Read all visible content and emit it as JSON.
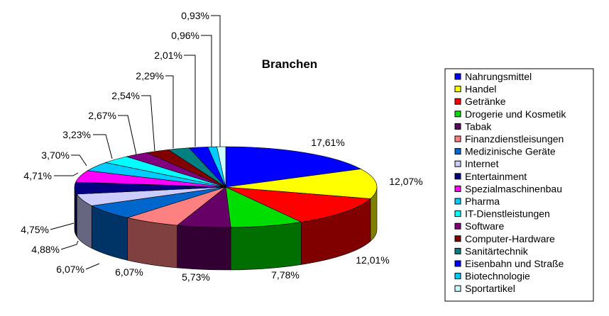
{
  "chart_data": {
    "type": "pie",
    "style": "3d-exploded-tilted",
    "title": "Branchen",
    "legend_position": "right",
    "slices": [
      {
        "name": "Nahrungsmittel",
        "value": 17.61,
        "label": "17,61%",
        "color": "#0000FF"
      },
      {
        "name": "Handel",
        "value": 12.07,
        "label": "12,07%",
        "color": "#FFFF00"
      },
      {
        "name": "Getränke",
        "value": 12.01,
        "label": "12,01%",
        "color": "#FF0000"
      },
      {
        "name": "Drogerie und Kosmetik",
        "value": 7.78,
        "label": "7,78%",
        "color": "#00DD00"
      },
      {
        "name": "Tabak",
        "value": 5.73,
        "label": "5,73%",
        "color": "#660066"
      },
      {
        "name": "Finanzdienstleisungen",
        "value": 6.07,
        "label": "6,07%",
        "color": "#FF8080"
      },
      {
        "name": "Medizinische Geräte",
        "value": 6.07,
        "label": "6,07%",
        "color": "#0066CC"
      },
      {
        "name": "Internet",
        "value": 4.88,
        "label": "4,88%",
        "color": "#CCCCFF"
      },
      {
        "name": "Entertainment",
        "value": 4.75,
        "label": "4,75%",
        "color": "#000080"
      },
      {
        "name": "Spezialmaschinenbau",
        "value": 4.71,
        "label": "4,71%",
        "color": "#FF00FF"
      },
      {
        "name": "Pharma",
        "value": 3.7,
        "label": "3,70%",
        "color": "#00CCFF"
      },
      {
        "name": "IT-Dienstleistungen",
        "value": 3.23,
        "label": "3,23%",
        "color": "#00FFFF"
      },
      {
        "name": "Software",
        "value": 2.67,
        "label": "2,67%",
        "color": "#800080"
      },
      {
        "name": "Computer-Hardware",
        "value": 2.54,
        "label": "2,54%",
        "color": "#800000"
      },
      {
        "name": "Sanitärtechnik",
        "value": 2.29,
        "label": "2,29%",
        "color": "#008080"
      },
      {
        "name": "Eisenbahn und Straße",
        "value": 2.01,
        "label": "2,01%",
        "color": "#0000FF"
      },
      {
        "name": "Biotechnologie",
        "value": 0.96,
        "label": "0,96%",
        "color": "#00CCFF"
      },
      {
        "name": "Sportartikel",
        "value": 0.93,
        "label": "0,93%",
        "color": "#CCFFFF"
      }
    ]
  }
}
